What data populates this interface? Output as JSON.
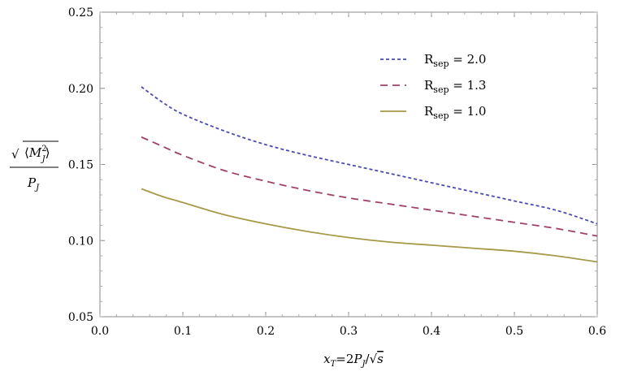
{
  "chart_data": {
    "type": "line",
    "title": "",
    "xlabel": "x_T=2P_J/√s",
    "xlabel_parts": {
      "x": "x",
      "x_sub": "T",
      "eq": "=2",
      "p": "P",
      "p_sub": "J",
      "slash": "/",
      "sqrt": "√",
      "s": "s"
    },
    "ylabel_parts": {
      "sqrt": "√",
      "lang": "⟨",
      "m": "M",
      "m_sup": "2",
      "m_sub": "J",
      "rang": "⟩",
      "p": "P",
      "p_sub": "J"
    },
    "xlim": [
      0.0,
      0.6
    ],
    "ylim": [
      0.05,
      0.25
    ],
    "xticks": [
      "0.0",
      "0.1",
      "0.2",
      "0.3",
      "0.4",
      "0.5",
      "0.6"
    ],
    "yticks": [
      "0.05",
      "0.10",
      "0.15",
      "0.20",
      "0.25"
    ],
    "xtick_values": [
      0.0,
      0.1,
      0.2,
      0.3,
      0.4,
      0.5,
      0.6
    ],
    "ytick_values": [
      0.05,
      0.1,
      0.15,
      0.2,
      0.25
    ],
    "grid": false,
    "legend_position": "top-right",
    "x": [
      0.05,
      0.075,
      0.1,
      0.15,
      0.2,
      0.25,
      0.3,
      0.35,
      0.4,
      0.45,
      0.5,
      0.55,
      0.6
    ],
    "series": [
      {
        "name": "R_sep = 2.0",
        "label_main": "R",
        "label_sub": "sep",
        "label_value": " = 2.0",
        "color": "#4a4ab0",
        "style": "dotted",
        "values": [
          0.201,
          0.191,
          0.183,
          0.172,
          0.163,
          0.156,
          0.15,
          0.144,
          0.138,
          0.132,
          0.126,
          0.12,
          0.111
        ]
      },
      {
        "name": "R_sep = 1.3",
        "label_main": "R",
        "label_sub": "sep",
        "label_value": " = 1.3",
        "color": "#a0406a",
        "style": "dashed",
        "values": [
          0.168,
          0.162,
          0.156,
          0.146,
          0.139,
          0.133,
          0.128,
          0.124,
          0.12,
          0.116,
          0.112,
          0.108,
          0.103
        ]
      },
      {
        "name": "R_sep = 1.0",
        "label_main": "R",
        "label_sub": "sep",
        "label_value": " = 1.0",
        "color": "#a69a48",
        "style": "solid",
        "values": [
          0.134,
          0.129,
          0.125,
          0.117,
          0.111,
          0.106,
          0.102,
          0.099,
          0.097,
          0.095,
          0.093,
          0.09,
          0.086
        ]
      }
    ]
  }
}
